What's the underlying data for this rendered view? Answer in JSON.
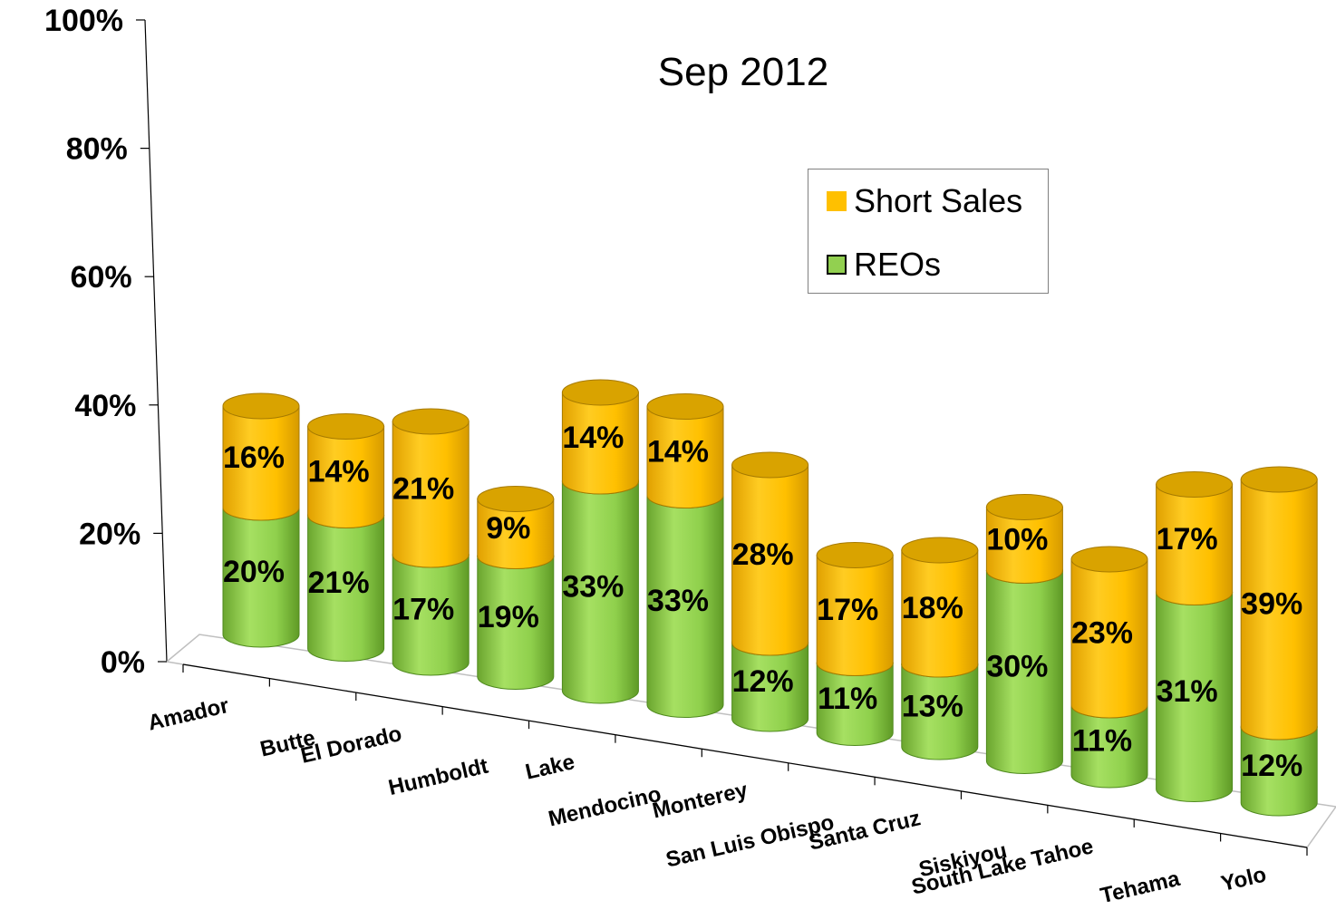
{
  "chart_data": {
    "type": "bar",
    "stacked": true,
    "title": "Sep 2012",
    "categories": [
      "Amador",
      "Butte",
      "El Dorado",
      "Humboldt",
      "Lake",
      "Mendocino",
      "Monterey",
      "San Luis Obispo",
      "Santa Cruz",
      "Siskiyou",
      "South Lake Tahoe",
      "Tehama",
      "Yolo"
    ],
    "series": [
      {
        "name": "REOs",
        "color": "#92d050",
        "values": [
          20,
          21,
          17,
          19,
          33,
          33,
          12,
          11,
          13,
          30,
          11,
          31,
          12
        ],
        "labels": [
          "20%",
          "21%",
          "17%",
          "19%",
          "33%",
          "33%",
          "12%",
          "11%",
          "13%",
          "30%",
          "11%",
          "31%",
          "12%"
        ]
      },
      {
        "name": "Short Sales",
        "color": "#ffc000",
        "values": [
          16,
          14,
          21,
          9,
          14,
          14,
          28,
          17,
          18,
          10,
          23,
          17,
          39
        ],
        "labels": [
          "16%",
          "14%",
          "21%",
          "9%",
          "14%",
          "14%",
          "28%",
          "17%",
          "18%",
          "10%",
          "23%",
          "17%",
          "39%"
        ]
      }
    ],
    "ylim": [
      0,
      100
    ],
    "yticks": [
      "0%",
      "20%",
      "40%",
      "60%",
      "80%",
      "100%"
    ],
    "legend": {
      "position": "top-right",
      "entries": [
        "Short Sales",
        "REOs"
      ]
    },
    "grid": false
  }
}
